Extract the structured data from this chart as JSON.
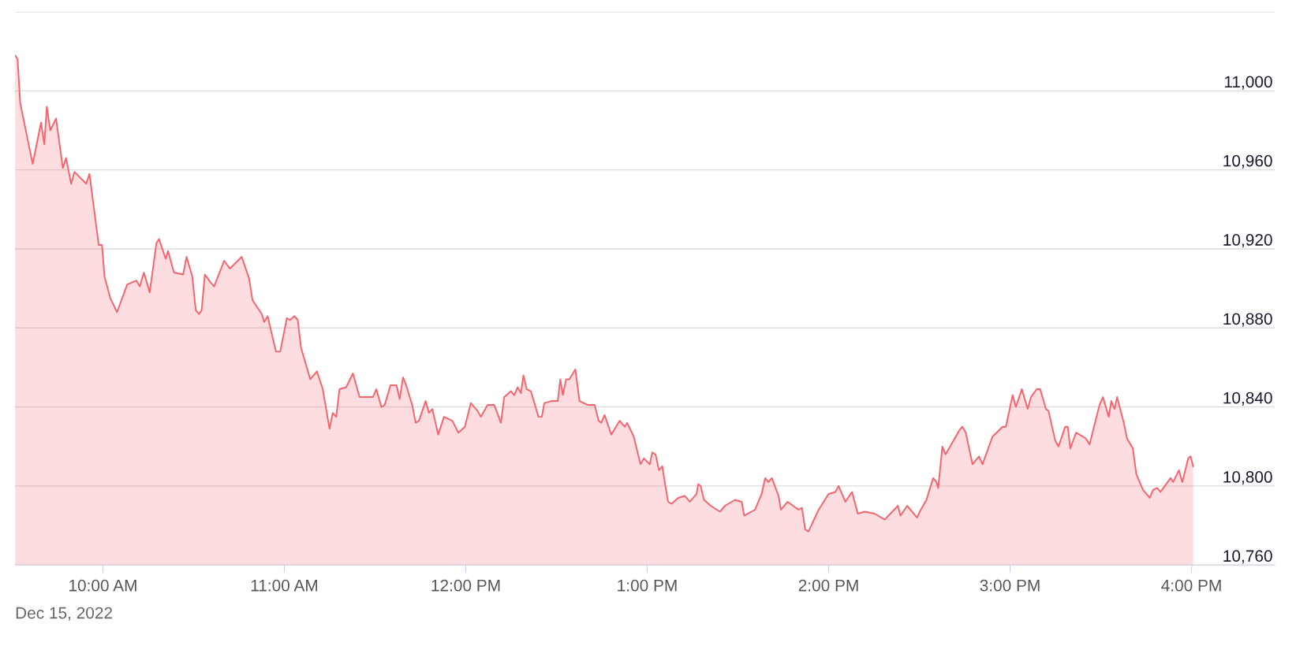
{
  "chart_data": {
    "type": "area",
    "color": "#f4646c",
    "x": [
      9.516,
      9.53,
      9.544,
      9.613,
      9.659,
      9.677,
      9.691,
      9.71,
      9.742,
      9.779,
      9.797,
      9.825,
      9.843,
      9.908,
      9.926,
      9.977,
      9.995,
      10.009,
      10.041,
      10.078,
      10.134,
      10.184,
      10.203,
      10.226,
      10.258,
      10.295,
      10.309,
      10.346,
      10.359,
      10.392,
      10.442,
      10.461,
      10.493,
      10.512,
      10.53,
      10.544,
      10.562,
      10.594,
      10.613,
      10.668,
      10.7,
      10.765,
      10.806,
      10.825,
      10.876,
      10.889,
      10.908,
      10.954,
      10.977,
      11.014,
      11.032,
      11.055,
      11.074,
      11.092,
      11.143,
      11.18,
      11.212,
      11.249,
      11.267,
      11.286,
      11.304,
      11.341,
      11.378,
      11.415,
      11.488,
      11.507,
      11.535,
      11.553,
      11.585,
      11.618,
      11.636,
      11.654,
      11.668,
      11.705,
      11.724,
      11.742,
      11.779,
      11.797,
      11.816,
      11.848,
      11.88,
      11.926,
      11.959,
      11.995,
      12.028,
      12.065,
      12.083,
      12.12,
      12.157,
      12.194,
      12.212,
      12.249,
      12.267,
      12.286,
      12.304,
      12.318,
      12.336,
      12.359,
      12.401,
      12.419,
      12.433,
      12.47,
      12.507,
      12.521,
      12.535,
      12.553,
      12.571,
      12.604,
      12.627,
      12.673,
      12.71,
      12.733,
      12.747,
      12.765,
      12.802,
      12.848,
      12.876,
      12.889,
      12.926,
      12.963,
      12.982,
      13.014,
      13.028,
      13.046,
      13.065,
      13.083,
      13.115,
      13.134,
      13.171,
      13.207,
      13.235,
      13.272,
      13.281,
      13.295,
      13.313,
      13.35,
      13.401,
      13.429,
      13.484,
      13.521,
      13.535,
      13.594,
      13.631,
      13.65,
      13.668,
      13.687,
      13.724,
      13.737,
      13.774,
      13.834,
      13.853,
      13.871,
      13.889,
      13.945,
      14.0,
      14.037,
      14.055,
      14.092,
      14.129,
      14.161,
      14.198,
      14.253,
      14.309,
      14.382,
      14.396,
      14.433,
      14.488,
      14.502,
      14.539,
      14.576,
      14.594,
      14.604,
      14.627,
      14.645,
      14.719,
      14.737,
      14.756,
      14.793,
      14.811,
      14.829,
      14.848,
      14.903,
      14.959,
      14.977,
      15.014,
      15.032,
      15.065,
      15.097,
      15.115,
      15.147,
      15.166,
      15.198,
      15.212,
      15.249,
      15.267,
      15.304,
      15.318,
      15.332,
      15.364,
      15.419,
      15.438,
      15.493,
      15.512,
      15.544,
      15.558,
      15.576,
      15.59,
      15.627,
      15.645,
      15.677,
      15.696,
      15.733,
      15.77,
      15.788,
      15.811,
      15.829,
      15.885,
      15.899,
      15.931,
      15.949,
      15.982,
      15.995,
      16.009
    ],
    "values": [
      11018,
      11016,
      10994,
      10963,
      10984,
      10973,
      10992,
      10980,
      10986,
      10961,
      10966,
      10953,
      10959,
      10953,
      10958,
      10922,
      10922,
      10906,
      10895,
      10888,
      10902,
      10904,
      10901,
      10908,
      10898,
      10923,
      10925,
      10915,
      10919,
      10908,
      10907,
      10916,
      10906,
      10889,
      10887,
      10889,
      10907,
      10903,
      10901,
      10914,
      10910,
      10916,
      10905,
      10894,
      10887,
      10883,
      10886,
      10868,
      10868,
      10885,
      10884,
      10886,
      10884,
      10870,
      10854,
      10858,
      10849,
      10829,
      10837,
      10835,
      10849,
      10850,
      10857,
      10845,
      10845,
      10849,
      10840,
      10841,
      10851,
      10851,
      10844,
      10855,
      10852,
      10841,
      10832,
      10833,
      10843,
      10837,
      10839,
      10826,
      10835,
      10833,
      10827,
      10830,
      10842,
      10838,
      10835,
      10841,
      10841,
      10832,
      10845,
      10848,
      10846,
      10850,
      10847,
      10856,
      10849,
      10848,
      10835,
      10835,
      10842,
      10843,
      10843,
      10854,
      10846,
      10854,
      10854,
      10859,
      10843,
      10841,
      10841,
      10833,
      10832,
      10836,
      10826,
      10833,
      10830,
      10832,
      10825,
      10811,
      10814,
      10811,
      10817,
      10816,
      10808,
      10810,
      10792,
      10791,
      10794,
      10795,
      10792,
      10796,
      10801,
      10800,
      10793,
      10790,
      10787,
      10790,
      10793,
      10792,
      10785,
      10788,
      10796,
      10804,
      10802,
      10804,
      10795,
      10788,
      10792,
      10788,
      10789,
      10778,
      10777,
      10788,
      10796,
      10797,
      10800,
      10792,
      10797,
      10786,
      10787,
      10786,
      10783,
      10790,
      10785,
      10790,
      10784,
      10787,
      10793,
      10804,
      10802,
      10799,
      10820,
      10816,
      10828,
      10830,
      10827,
      10811,
      10813,
      10815,
      10811,
      10825,
      10830,
      10830,
      10846,
      10840,
      10849,
      10839,
      10845,
      10849,
      10849,
      10839,
      10838,
      10823,
      10820,
      10830,
      10830,
      10819,
      10827,
      10824,
      10821,
      10841,
      10845,
      10835,
      10843,
      10839,
      10845,
      10832,
      10824,
      10819,
      10806,
      10798,
      10794,
      10798,
      10799,
      10797,
      10804,
      10802,
      10808,
      10802,
      10814,
      10815,
      10810
    ],
    "xlim": [
      9.516,
      16.46
    ],
    "xticks": [
      {
        "value": 10,
        "label": "10:00 AM"
      },
      {
        "value": 11,
        "label": "11:00 AM"
      },
      {
        "value": 12,
        "label": "12:00 PM"
      },
      {
        "value": 13,
        "label": "1:00 PM"
      },
      {
        "value": 14,
        "label": "2:00 PM"
      },
      {
        "value": 15,
        "label": "3:00 PM"
      },
      {
        "value": 16,
        "label": "4:00 PM"
      }
    ],
    "ylim": [
      10760,
      11040
    ],
    "yticks": [
      {
        "value": 10760,
        "label": "10,760"
      },
      {
        "value": 10800,
        "label": "10,800"
      },
      {
        "value": 10840,
        "label": "10,840"
      },
      {
        "value": 10880,
        "label": "10,880"
      },
      {
        "value": 10920,
        "label": "10,920"
      },
      {
        "value": 10960,
        "label": "10,960"
      },
      {
        "value": 11000,
        "label": "11,000"
      },
      {
        "value": 11040,
        "label": null
      }
    ],
    "grid": "y",
    "annotations": [
      "Dec 15, 2022"
    ]
  }
}
